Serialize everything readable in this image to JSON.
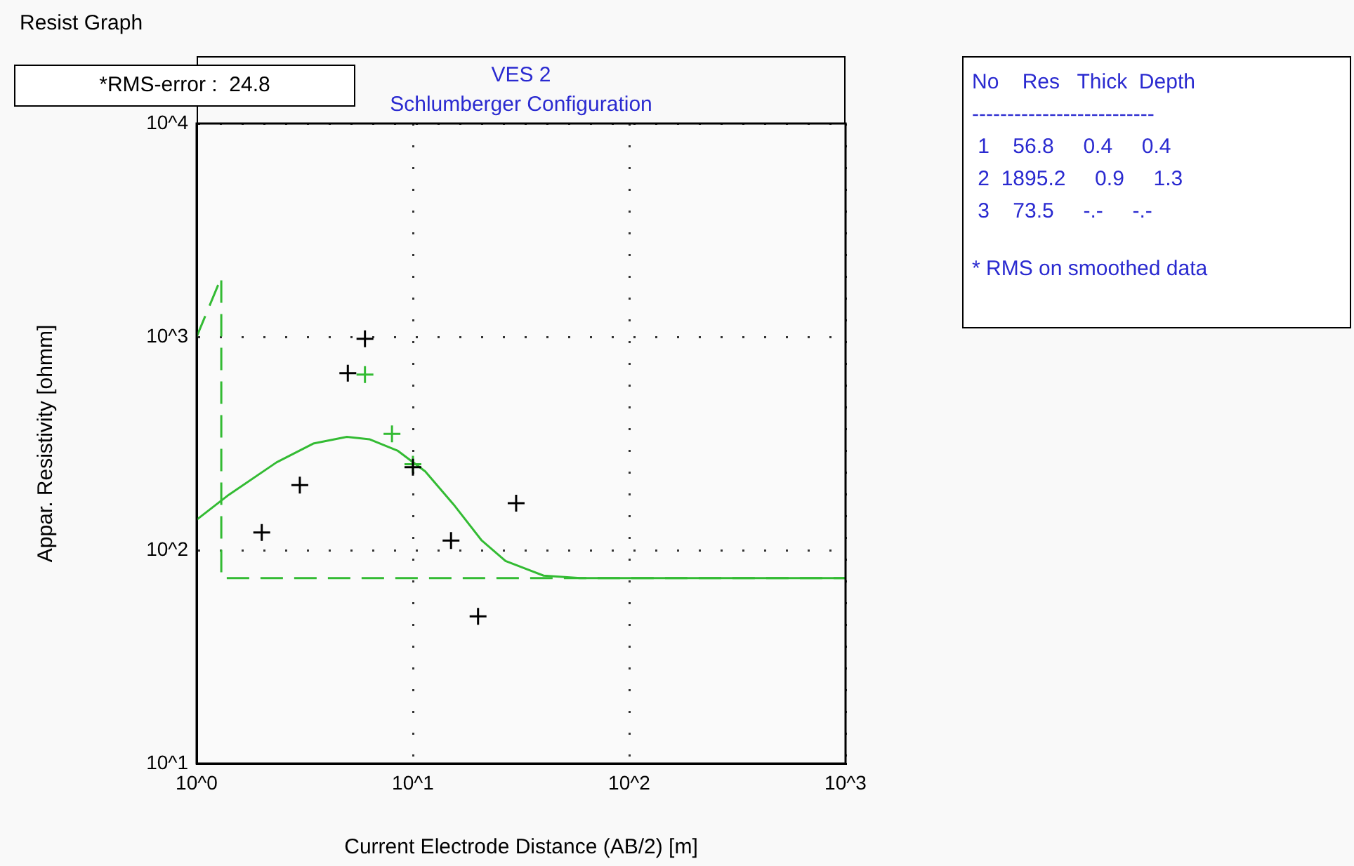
{
  "chart_data": {
    "type": "scatter",
    "title": "VES 2",
    "subtitle": "Schlumberger Configuration",
    "xlabel": "Current Electrode Distance (AB/2) [m]",
    "ylabel": "Appar. Resistivity [ohmm]",
    "log": "xy",
    "grid": true,
    "legend": false,
    "xlim": [
      1,
      1000
    ],
    "ylim": [
      10,
      10000
    ],
    "xticks": [
      {
        "value": 1,
        "label": "10^0"
      },
      {
        "value": 10,
        "label": "10^1"
      },
      {
        "value": 100,
        "label": "10^2"
      },
      {
        "value": 1000,
        "label": "10^3"
      }
    ],
    "yticks": [
      {
        "value": 10,
        "label": "10^1"
      },
      {
        "value": 100,
        "label": "10^2"
      },
      {
        "value": 1000,
        "label": "10^3"
      },
      {
        "value": 10000,
        "label": "10^4"
      }
    ],
    "series": [
      {
        "color": "#000000",
        "marker": "cross",
        "x": [
          2,
          3,
          5,
          6,
          10,
          15,
          20,
          30
        ],
        "values": [
          121,
          202,
          676,
          980,
          245,
          111,
          49,
          166
        ]
      },
      {
        "color": "#33bb33",
        "marker": "cross",
        "x": [
          6,
          8,
          10
        ],
        "values": [
          665,
          351,
          253
        ]
      },
      {
        "type": "line",
        "color": "#33bb33",
        "marker": "none",
        "line_style": "solid",
        "x": [
          1,
          1.41,
          2.34,
          3.46,
          4.95,
          6.29,
          8.48,
          11.4,
          15.4,
          20.8,
          26.8,
          40.2,
          59.3,
          100,
          1000
        ],
        "values": [
          139,
          182,
          258,
          316,
          340,
          331,
          293,
          234,
          164,
          111,
          89,
          76,
          74,
          74,
          74
        ]
      },
      {
        "type": "line",
        "color": "#33bb33",
        "marker": "none",
        "line_style": "dashed",
        "x": [
          1,
          1.3,
          1.3,
          1000
        ],
        "values": [
          1000,
          1900,
          74,
          74
        ]
      }
    ],
    "annotations": [
      "Resist Graph",
      "*RMS-error :  24.8",
      "No    Res   Thick  Depth",
      "--------------------------",
      " 1    56.8     0.4     0.4",
      " 2  1895.2     0.9     1.3",
      " 3    73.5     -.-     -.-",
      "* RMS on smoothed data"
    ]
  }
}
